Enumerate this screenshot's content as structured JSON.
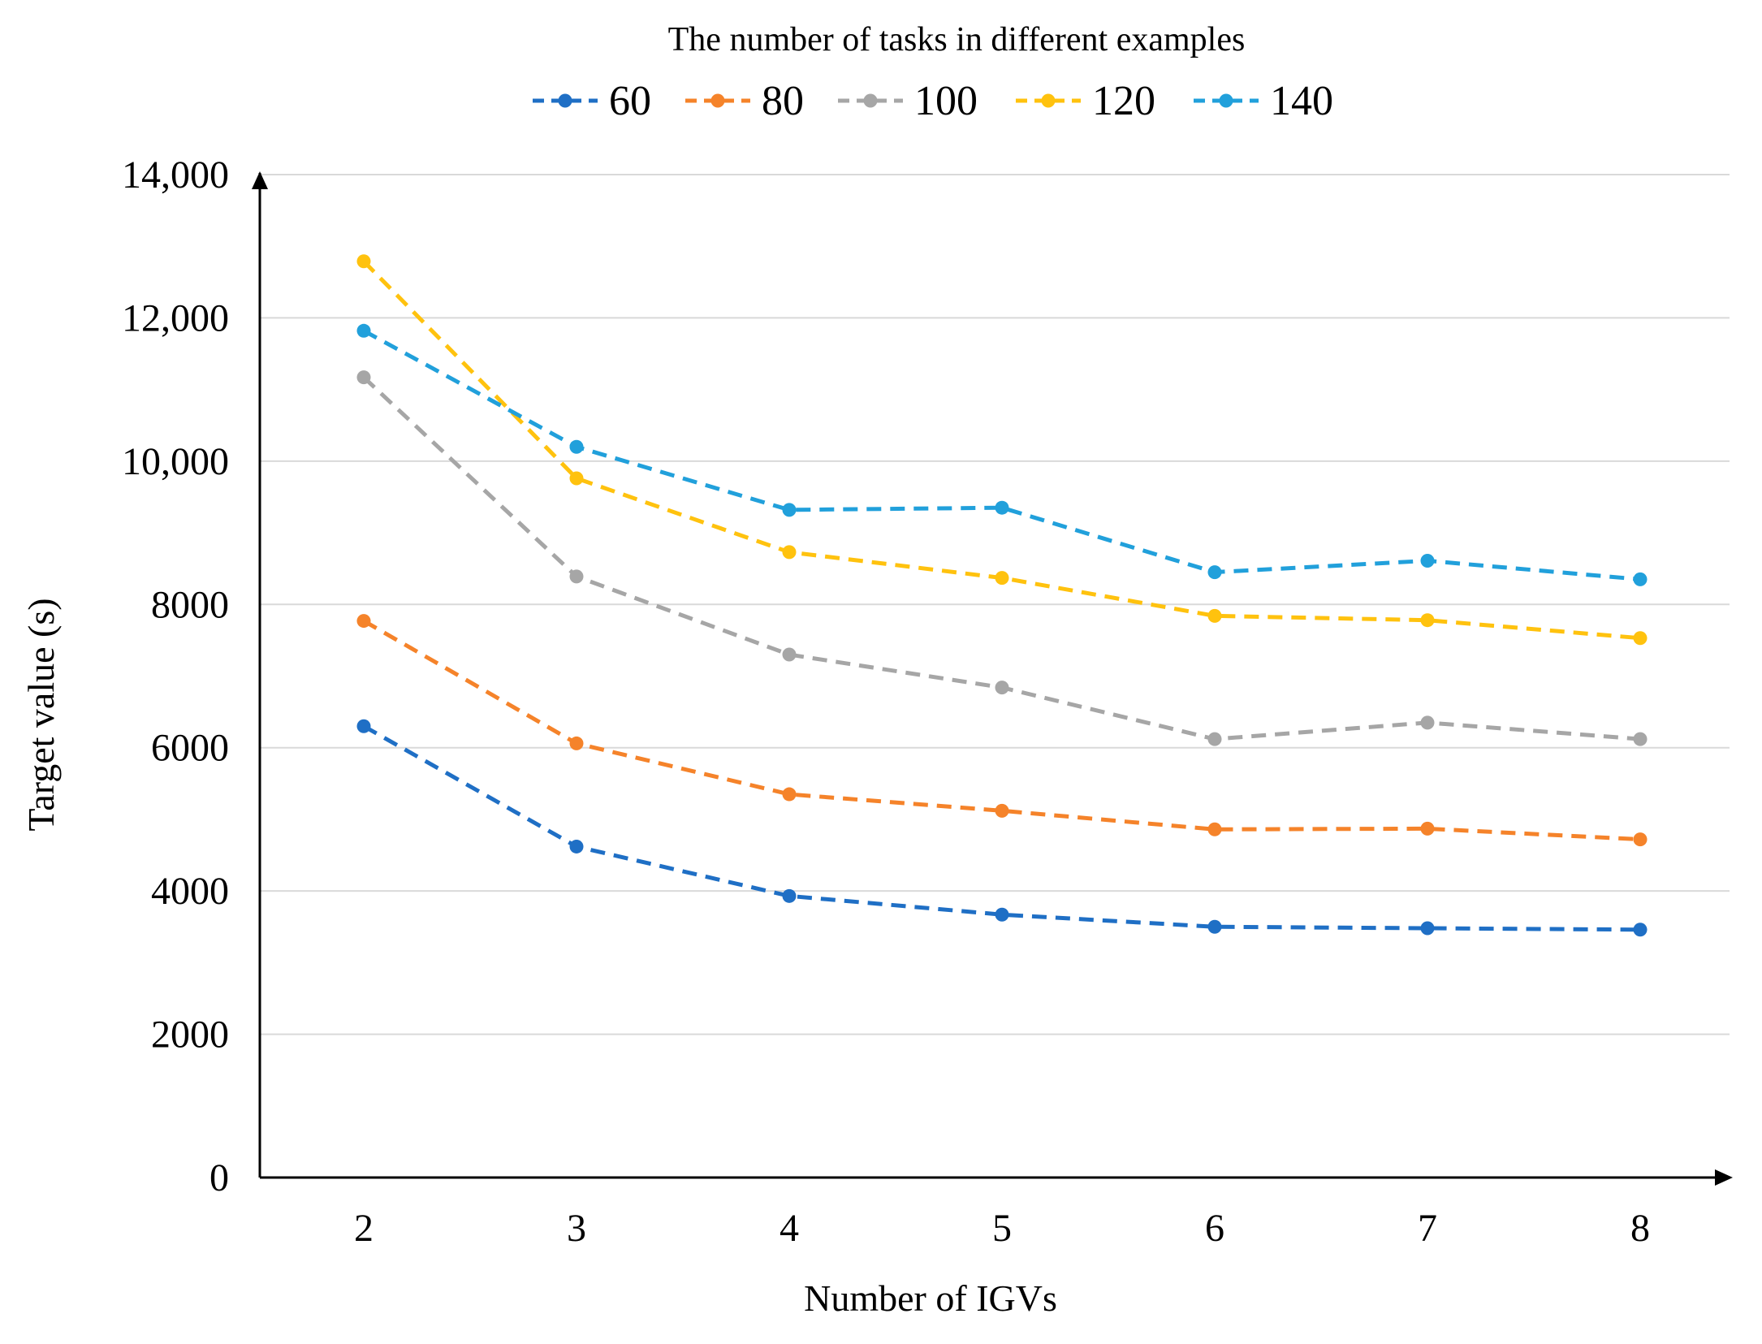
{
  "chart_data": {
    "type": "line",
    "title": "",
    "legend_title": "The number of tasks in different examples",
    "legend_position": "top-center",
    "xlabel": "Number of IGVs",
    "ylabel": "Target value (s)",
    "x": [
      2,
      3,
      4,
      5,
      6,
      7,
      8
    ],
    "x_tick_labels": [
      "2",
      "3",
      "4",
      "5",
      "6",
      "7",
      "8"
    ],
    "ylim": [
      0,
      14000
    ],
    "y_ticks": [
      0,
      2000,
      4000,
      6000,
      8000,
      10000,
      12000,
      14000
    ],
    "y_tick_labels": [
      "0",
      "2000",
      "4000",
      "6000",
      "8000",
      "10,000",
      "12,000",
      "14,000"
    ],
    "grid": "horizontal",
    "series": [
      {
        "name": "60",
        "color": "#1f6fc5",
        "values": [
          6300,
          4620,
          3930,
          3670,
          3500,
          3480,
          3460
        ]
      },
      {
        "name": "80",
        "color": "#f5832a",
        "values": [
          7770,
          6060,
          5350,
          5120,
          4860,
          4870,
          4720
        ]
      },
      {
        "name": "100",
        "color": "#a6a6a6",
        "values": [
          11170,
          8390,
          7300,
          6840,
          6120,
          6350,
          6120
        ]
      },
      {
        "name": "120",
        "color": "#ffc20e",
        "values": [
          12790,
          9760,
          8730,
          8370,
          7840,
          7780,
          7530
        ]
      },
      {
        "name": "140",
        "color": "#21a0db",
        "values": [
          11820,
          10200,
          9320,
          9350,
          8450,
          8610,
          8350
        ]
      }
    ]
  }
}
